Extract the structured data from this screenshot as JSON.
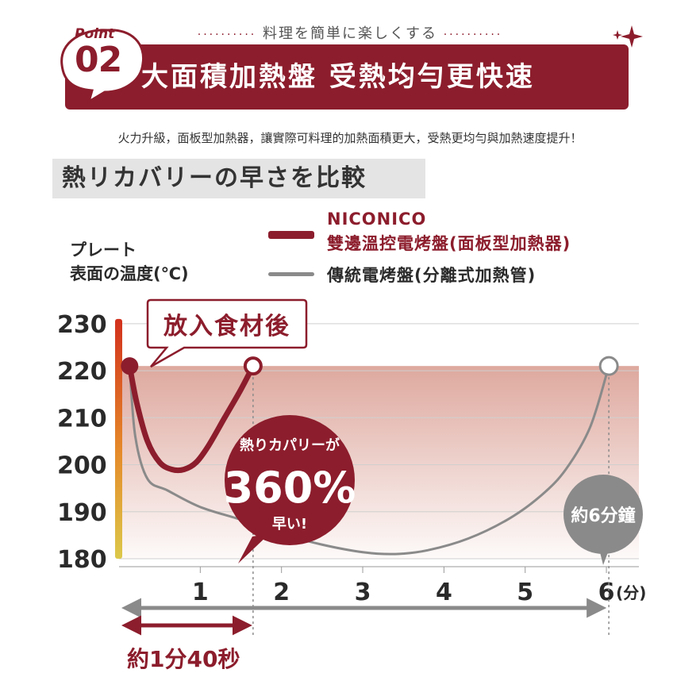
{
  "header": {
    "tagline": "料理を簡単に楽しくする",
    "point_word": "Point",
    "point_number": "02",
    "title": "大面積加熱盤 受熱均勻更快速",
    "subtitle": "火力升級，面板型加熱器，讓實際可料理的加熱面積更大，受熱更均勻與加熱速度提升！",
    "section_title": "熱リカバリーの早さを比較"
  },
  "colors": {
    "brand": "#8c1d2c",
    "traditional": "#8a8a8a",
    "band": "#d9a49a"
  },
  "chart_data": {
    "type": "line",
    "ylabel_line1": "プレート",
    "ylabel_line2": "表面の温度(℃)",
    "x_unit": "(分)",
    "xlim": [
      0,
      6.4
    ],
    "ylim": [
      180,
      232
    ],
    "x_ticks": [
      1,
      2,
      3,
      4,
      5,
      6
    ],
    "y_ticks": [
      180,
      190,
      200,
      210,
      220,
      230
    ],
    "grid": true,
    "legend_position": "top",
    "series": [
      {
        "name_line1": "NICONICO",
        "name_line2": "雙邊溫控電烤盤(面板型加熱器)",
        "color": "#8c1d2c",
        "x": [
          0.13,
          0.22,
          0.35,
          0.5,
          0.65,
          0.8,
          0.95,
          1.1,
          1.3,
          1.5,
          1.65
        ],
        "y": [
          221,
          213,
          205,
          200.5,
          199,
          199,
          200.5,
          204,
          210,
          216,
          221
        ]
      },
      {
        "name": "傳統電烤盤(分離式加熱管)",
        "color": "#8a8a8a",
        "x": [
          0.13,
          0.2,
          0.35,
          0.6,
          1.0,
          1.5,
          2.0,
          2.5,
          3.0,
          3.4,
          3.8,
          4.3,
          4.8,
          5.2,
          5.5,
          5.8,
          6.03
        ],
        "y": [
          221,
          206,
          197,
          194.5,
          191,
          188.3,
          185.3,
          183,
          181.4,
          181,
          181.8,
          184.3,
          188.5,
          193.5,
          199,
          208,
          221
        ]
      }
    ],
    "annotations": {
      "after_food": "放入食材後",
      "recovery_line1": "熱りカパリーが",
      "recovery_value": "360%",
      "recovery_line3": "早い!",
      "six_min": "約6分鐘",
      "niconico_time": "約1分40秒"
    }
  }
}
